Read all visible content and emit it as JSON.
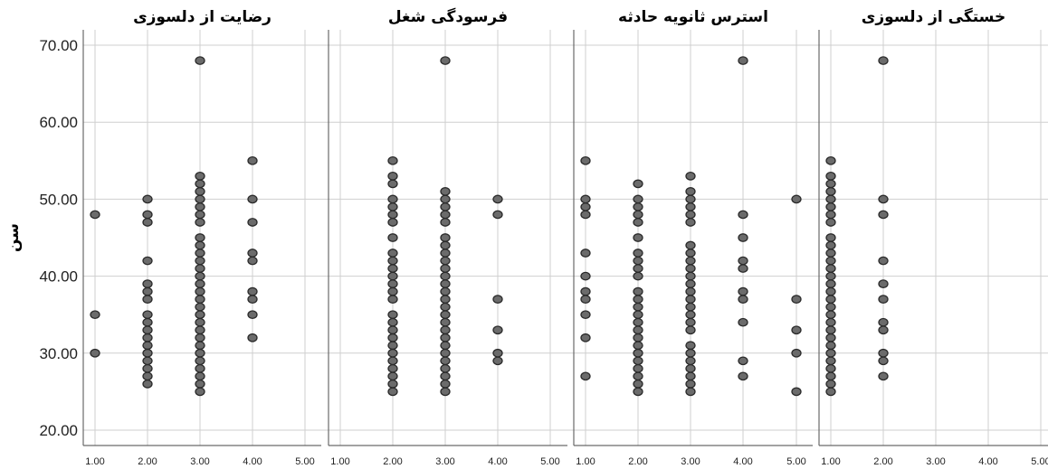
{
  "chart_data": {
    "type": "scatter",
    "ylabel": "سن",
    "ylim": [
      18,
      72
    ],
    "y_ticks": [
      "70.00",
      "60.00",
      "50.00",
      "40.00",
      "30.00",
      "20.00"
    ],
    "grid": true,
    "colors": {
      "marker_fill": "#6b6b6b",
      "marker_stroke": "#2a2a2a",
      "grid": "#cfcfcf",
      "axis": "#6a6a6a"
    },
    "panels": [
      {
        "title": "رضایت از دلسوزی",
        "x_ticks": [
          "1.00",
          "2.00",
          "3.00",
          "4.00",
          "5.00"
        ],
        "points": [
          {
            "x": 1,
            "y": [
              48,
              35,
              30
            ]
          },
          {
            "x": 2,
            "y": [
              50,
              48,
              47,
              42,
              39,
              38,
              37,
              35,
              34,
              33,
              32,
              31,
              30,
              29,
              28,
              27,
              26
            ]
          },
          {
            "x": 3,
            "y": [
              68,
              53,
              52,
              51,
              50,
              49,
              48,
              47,
              45,
              44,
              43,
              42,
              41,
              40,
              39,
              38,
              37,
              36,
              35,
              34,
              33,
              32,
              31,
              30,
              29,
              28,
              27,
              26,
              25
            ]
          },
          {
            "x": 4,
            "y": [
              55,
              50,
              47,
              43,
              42,
              38,
              37,
              35,
              32
            ]
          }
        ]
      },
      {
        "title": "فرسودگی شغل",
        "x_ticks": [
          "1.00",
          "2.00",
          "3.00",
          "4.00",
          "5.00"
        ],
        "points": [
          {
            "x": 2,
            "y": [
              55,
              53,
              52,
              50,
              49,
              48,
              47,
              45,
              43,
              42,
              41,
              40,
              39,
              38,
              37,
              35,
              34,
              33,
              32,
              31,
              30,
              29,
              28,
              27,
              26,
              25
            ]
          },
          {
            "x": 3,
            "y": [
              68,
              51,
              50,
              49,
              48,
              47,
              45,
              44,
              43,
              42,
              41,
              40,
              39,
              38,
              37,
              36,
              35,
              34,
              33,
              32,
              31,
              30,
              29,
              28,
              27,
              26,
              25
            ]
          },
          {
            "x": 4,
            "y": [
              50,
              48,
              37,
              33,
              30,
              29
            ]
          }
        ]
      },
      {
        "title": "استرس ثانویه حادثه",
        "x_ticks": [
          "1.00",
          "2.00",
          "3.00",
          "4.00",
          "5.00"
        ],
        "points": [
          {
            "x": 1,
            "y": [
              55,
              50,
              49,
              48,
              43,
              40,
              38,
              37,
              35,
              32,
              27
            ]
          },
          {
            "x": 2,
            "y": [
              52,
              50,
              49,
              48,
              47,
              45,
              43,
              42,
              41,
              40,
              38,
              37,
              36,
              35,
              34,
              33,
              32,
              31,
              30,
              29,
              28,
              27,
              26,
              25
            ]
          },
          {
            "x": 3,
            "y": [
              53,
              51,
              50,
              49,
              48,
              47,
              44,
              43,
              42,
              41,
              40,
              39,
              38,
              37,
              36,
              35,
              34,
              33,
              31,
              30,
              29,
              28,
              27,
              26,
              25
            ]
          },
          {
            "x": 4,
            "y": [
              68,
              48,
              45,
              42,
              41,
              38,
              37,
              34,
              29,
              27
            ]
          },
          {
            "x": 5,
            "y": [
              50,
              37,
              33,
              30,
              25
            ]
          }
        ]
      },
      {
        "title": "خستگی از دلسوزی",
        "x_ticks": [
          "1.00",
          "2.00",
          "3.00",
          "4.00",
          "5.00"
        ],
        "points": [
          {
            "x": 1,
            "y": [
              55,
              53,
              52,
              51,
              50,
              49,
              48,
              47,
              45,
              44,
              43,
              42,
              41,
              40,
              39,
              38,
              37,
              36,
              35,
              34,
              33,
              32,
              31,
              30,
              29,
              28,
              27,
              26,
              25
            ]
          },
          {
            "x": 2,
            "y": [
              68,
              50,
              48,
              42,
              39,
              37,
              34,
              33,
              30,
              29,
              27
            ]
          }
        ]
      }
    ]
  }
}
